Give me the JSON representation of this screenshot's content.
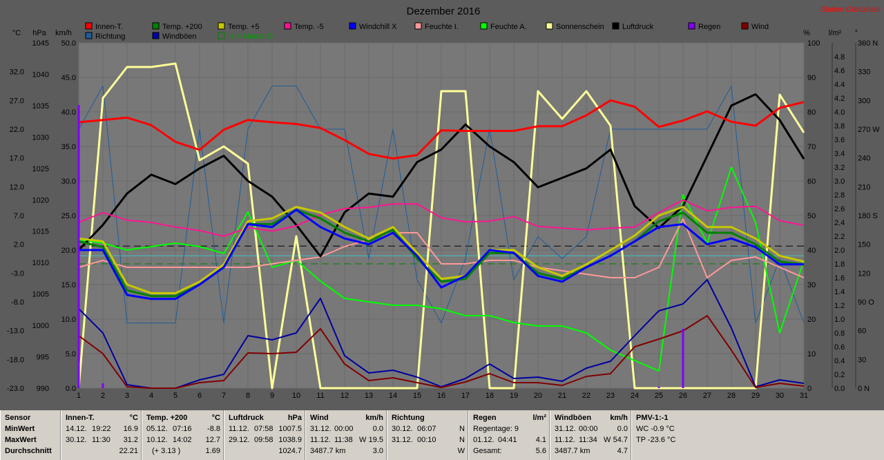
{
  "chart_data": {
    "type": "line",
    "title": "Dezember 2016",
    "station": "Station Göritzhain",
    "x": [
      1,
      2,
      3,
      4,
      5,
      6,
      7,
      8,
      9,
      10,
      11,
      12,
      13,
      14,
      15,
      16,
      17,
      18,
      19,
      20,
      21,
      22,
      23,
      24,
      25,
      26,
      27,
      28,
      29,
      30,
      31
    ],
    "axes": {
      "kmh": {
        "label": "km/h",
        "min": 0,
        "max": 50,
        "ticks": [
          "0.0",
          "5.0",
          "10.0",
          "15.0",
          "20.0",
          "25.0",
          "30.0",
          "35.0",
          "40.0",
          "45.0",
          "50.0"
        ]
      },
      "hpa": {
        "label": "hPa",
        "min": 990,
        "max": 1045,
        "ticks": [
          "990",
          "995",
          "1000",
          "1005",
          "1010",
          "1015",
          "1020",
          "1025",
          "1030",
          "1035",
          "1040",
          "1045"
        ]
      },
      "temp": {
        "label": "°C",
        "min": -23,
        "max": 37,
        "ticks": [
          "-23.0",
          "-18.0",
          "-13.0",
          "-8.0",
          "-3.0",
          "2.0",
          "7.0",
          "12.0",
          "17.0",
          "22.0",
          "27.0",
          "32.0"
        ]
      },
      "pct": {
        "label": "%",
        "min": 0,
        "max": 100,
        "ticks": [
          "0",
          "10",
          "20",
          "30",
          "40",
          "50",
          "60",
          "70",
          "80",
          "90",
          "100"
        ]
      },
      "rain": {
        "label": "l/m²",
        "min": 0,
        "max": 5,
        "ticks": [
          "0.0",
          "0.2",
          "0.4",
          "0.6",
          "0.8",
          "1.0",
          "1.2",
          "1.4",
          "1.6",
          "1.8",
          "2.0",
          "2.2",
          "2.4",
          "2.6",
          "2.8",
          "3.0",
          "3.2",
          "3.4",
          "3.6",
          "3.8",
          "4.0",
          "4.2",
          "4.4",
          "4.6",
          "4.8"
        ]
      },
      "dir": {
        "label": "°",
        "min": 0,
        "max": 360,
        "ticks": [
          "0 N",
          "30",
          "60",
          "90 O",
          "120",
          "150",
          "180 S",
          "210",
          "240",
          "270 W",
          "300",
          "330",
          "360 N"
        ]
      }
    },
    "grid": true,
    "legend": [
      {
        "name": "Innen-T.",
        "color": "#ff0000"
      },
      {
        "name": "Richtung",
        "color": "#1f5c99"
      },
      {
        "name": "Temp. +200",
        "color": "#008000"
      },
      {
        "name": "Windböen",
        "color": "#0000a0"
      },
      {
        "name": "Temp. +5",
        "color": "#c8c800"
      },
      {
        "name": "-1.4 Monat-Ø",
        "color": "#008000"
      },
      {
        "name": "Temp. -5",
        "color": "#ff1493"
      },
      {
        "name": "Windchill X",
        "color": "#0000ff"
      },
      {
        "name": "Feuchte I.",
        "color": "#ff9999"
      },
      {
        "name": "Feuchte A.",
        "color": "#00ff00"
      },
      {
        "name": "Sonnenschein",
        "color": "#ffff99"
      },
      {
        "name": "Luftdruck",
        "color": "#000000"
      },
      {
        "name": "Regen",
        "color": "#8000ff"
      },
      {
        "name": "Wind",
        "color": "#800000"
      }
    ],
    "series": [
      {
        "name": "Richtung",
        "axis": "dir",
        "color": "#1f5c99",
        "width": 1,
        "values": [
          270,
          315,
          68,
          68,
          68,
          270,
          68,
          270,
          315,
          315,
          270,
          270,
          135,
          270,
          113,
          68,
          135,
          270,
          113,
          158,
          135,
          158,
          270,
          270,
          270,
          270,
          270,
          315,
          68,
          135,
          68
        ]
      },
      {
        "name": "Sonnenschein",
        "axis": "pct",
        "color": "#ffff99",
        "width": 3,
        "values": [
          0,
          84,
          93,
          93,
          94,
          66,
          70,
          65,
          0,
          44,
          0,
          0,
          0,
          0,
          0,
          86,
          86,
          0,
          0,
          86,
          78,
          86,
          76,
          0,
          0,
          0,
          0,
          0,
          0,
          85,
          74
        ]
      },
      {
        "name": "Feuchte A.",
        "axis": "pct",
        "color": "#00ff00",
        "width": 2,
        "values": [
          43,
          42,
          40,
          41,
          42,
          41,
          39,
          51,
          35,
          37,
          31,
          26,
          25,
          24,
          24,
          23,
          21,
          21,
          19,
          18,
          18,
          16,
          11,
          8,
          5,
          56,
          42,
          64,
          48,
          16,
          37
        ]
      },
      {
        "name": "Feuchte I.",
        "axis": "pct",
        "color": "#ff9999",
        "width": 2,
        "values": [
          35,
          37,
          35,
          35,
          35,
          35,
          35,
          35,
          36,
          37,
          38,
          41,
          43,
          45,
          45,
          36,
          36,
          37,
          37,
          35,
          34,
          33,
          32,
          32,
          35,
          49,
          32,
          37,
          38,
          35,
          32
        ]
      },
      {
        "name": "Luftdruck",
        "axis": "hpa",
        "color": "#000000",
        "width": 3,
        "values": [
          1012,
          1016,
          1021,
          1024,
          1022.5,
          1025,
          1027,
          1023,
          1020.5,
          1016,
          1011,
          1018,
          1021,
          1020.5,
          1026,
          1028,
          1032,
          1028.5,
          1026,
          1022,
          1023.5,
          1025,
          1028,
          1019,
          1015.5,
          1019,
          1027,
          1035,
          1036.8,
          1032.7,
          1026.5
        ]
      },
      {
        "name": "Innen-T.",
        "axis": "temp",
        "color": "#ff0000",
        "width": 3,
        "values": [
          23.2,
          23.6,
          24.0,
          22.7,
          19.8,
          18.4,
          21.9,
          23.6,
          23.2,
          22.9,
          22.2,
          20.1,
          17.7,
          16.9,
          17.5,
          21.8,
          21.7,
          21.7,
          21.7,
          22.5,
          22.5,
          24.4,
          27.0,
          25.9,
          22.4,
          23.5,
          25.1,
          23.3,
          22.6,
          25.7,
          26.7
        ]
      },
      {
        "name": "Temp. -5",
        "axis": "temp",
        "color": "#ff1493",
        "width": 2,
        "values": [
          5.8,
          7.5,
          6.2,
          5.8,
          5.0,
          4.4,
          3.4,
          4.9,
          4.3,
          5.2,
          7.1,
          8.2,
          8.4,
          9.0,
          9.0,
          6.6,
          5.9,
          6.0,
          6.8,
          5.1,
          4.8,
          4.5,
          4.8,
          5.0,
          7.5,
          9.7,
          7.8,
          8.4,
          8.6,
          6.1,
          5.3
        ]
      },
      {
        "name": "Temp. +5",
        "axis": "temp",
        "color": "#c8c800",
        "width": 3,
        "values": [
          3.0,
          2.5,
          -5.0,
          -6.5,
          -6.5,
          -4.5,
          -1.5,
          6.0,
          6.5,
          8.5,
          7.5,
          5.0,
          3.0,
          5.0,
          0.5,
          -4.0,
          -3.5,
          1.0,
          1.0,
          -2.0,
          -3.5,
          -1.5,
          1.0,
          3.5,
          7.0,
          8.5,
          5.0,
          5.0,
          3.0,
          0.0,
          -1.0
        ]
      },
      {
        "name": "Temp. +200",
        "axis": "temp",
        "color": "#008000",
        "width": 3,
        "values": [
          2.5,
          1.5,
          -6.0,
          -7.0,
          -7.0,
          -5.0,
          -2.0,
          5.5,
          5.5,
          8.0,
          6.5,
          4.0,
          2.5,
          4.5,
          -0.5,
          -4.5,
          -4.0,
          0.5,
          0.5,
          -3.0,
          -4.0,
          -2.0,
          0.0,
          2.5,
          6.0,
          7.5,
          4.0,
          4.0,
          2.0,
          -1.0,
          -1.5
        ]
      },
      {
        "name": "Windchill X",
        "axis": "temp",
        "color": "#0000ff",
        "width": 3,
        "values": [
          1.0,
          1.0,
          -6.8,
          -7.5,
          -7.5,
          -5.0,
          -2.0,
          5.5,
          5.0,
          8.0,
          5.0,
          3.0,
          2.0,
          4.0,
          0.0,
          -5.5,
          -3.5,
          1.0,
          0.5,
          -3.5,
          -4.5,
          -2.0,
          0.0,
          2.5,
          5.0,
          5.5,
          2.0,
          3.0,
          1.5,
          -1.5,
          -1.5
        ]
      },
      {
        "name": "Windböen",
        "axis": "kmh",
        "color": "#0000a0",
        "width": 2,
        "values": [
          11.5,
          8.0,
          0.5,
          0.0,
          0.0,
          1.2,
          2.0,
          7.6,
          7.0,
          8.0,
          13.0,
          4.7,
          2.2,
          2.6,
          1.6,
          0.2,
          1.4,
          3.5,
          1.4,
          1.6,
          1.0,
          2.9,
          3.9,
          7.6,
          11.2,
          12.2,
          15.7,
          8.7,
          0.2,
          1.2,
          0.7
        ]
      },
      {
        "name": "Wind",
        "axis": "kmh",
        "color": "#800000",
        "width": 2,
        "values": [
          7.6,
          5.0,
          0.2,
          0.0,
          0.0,
          0.8,
          1.1,
          5.1,
          5.0,
          5.2,
          8.6,
          3.5,
          1.1,
          1.5,
          0.8,
          0.1,
          0.9,
          2.1,
          0.8,
          0.8,
          0.4,
          1.7,
          2.1,
          6.0,
          7.1,
          8.3,
          10.5,
          5.5,
          0.1,
          0.7,
          0.3
        ]
      }
    ],
    "reference_lines": [
      {
        "axis": "temp",
        "value": 1.69,
        "color": "#000000",
        "dash": "10,6"
      },
      {
        "axis": "temp",
        "value": -1.4,
        "color": "#008000",
        "dash": "10,6"
      },
      {
        "axis": "temp",
        "value": 0.0,
        "color": "#40c0c0",
        "dash": "none"
      }
    ],
    "rain_bars": [
      {
        "day": 1,
        "value": 4.1
      },
      {
        "day": 2,
        "value": 0.07
      },
      {
        "day": 26,
        "value": 0.86
      },
      {
        "day": 25,
        "value": 0.02
      }
    ]
  },
  "stats": {
    "labels": [
      "Sensor",
      "MinWert",
      "MaxWert",
      "Durchschnitt"
    ],
    "innen": {
      "title": "Innen-T.",
      "unit": "°C",
      "min": {
        "date": "14.12.",
        "time": "19:22",
        "val": "16.9"
      },
      "max": {
        "date": "30.12.",
        "time": "11:30",
        "val": "31.2"
      },
      "avg": "22.21"
    },
    "temp": {
      "title": "Temp. +200",
      "unit": "°C",
      "min": {
        "date": "05.12.",
        "time": "07:16",
        "val": "-8.8"
      },
      "max": {
        "date": "10.12.",
        "time": "14:02",
        "val": "12.7"
      },
      "avg_extra": "(+ 3.13 )",
      "avg": "1.69"
    },
    "druck": {
      "title": "Luftdruck",
      "unit": "hPa",
      "min": {
        "date": "11.12.",
        "time": "07:58",
        "val": "1007.5"
      },
      "max": {
        "date": "29.12.",
        "time": "09:58",
        "val": "1038.9"
      },
      "avg": "1024.7"
    },
    "wind": {
      "title": "Wind",
      "unit": "km/h",
      "min": {
        "date": "31.12.",
        "time": "00:00",
        "dir": "",
        "val": "0.0"
      },
      "max": {
        "date": "11.12.",
        "time": "11:38",
        "dir": "W",
        "val": "19.5"
      },
      "avg_extra": "3487.7 km",
      "avg": "3.0"
    },
    "richtung": {
      "title": "Richtung",
      "min": {
        "date": "30.12.",
        "time": "06:07",
        "val": "N"
      },
      "max": {
        "date": "31.12.",
        "time": "00:10",
        "val": "N"
      },
      "avg": "W"
    },
    "regen": {
      "title": "Regen",
      "unit": "l/m²",
      "r1": "Regentage: 9",
      "r2": {
        "date": "01.12.",
        "time": "04:41",
        "val": "4.1"
      },
      "r3": {
        "label": "Gesamt:",
        "val": "5.6"
      }
    },
    "boeen": {
      "title": "Windböen",
      "unit": "km/h",
      "min": {
        "date": "31.12.",
        "time": "00:00",
        "dir": "",
        "val": "0.0"
      },
      "max": {
        "date": "11.12.",
        "time": "11:34",
        "dir": "W",
        "val": "54.7"
      },
      "avg_extra": "3487.7 km",
      "avg": "4.7"
    },
    "pmv": {
      "title": "PMV-1:-1",
      "wc": "WC -0.9 °C",
      "tp": "TP -23.6 °C"
    }
  }
}
